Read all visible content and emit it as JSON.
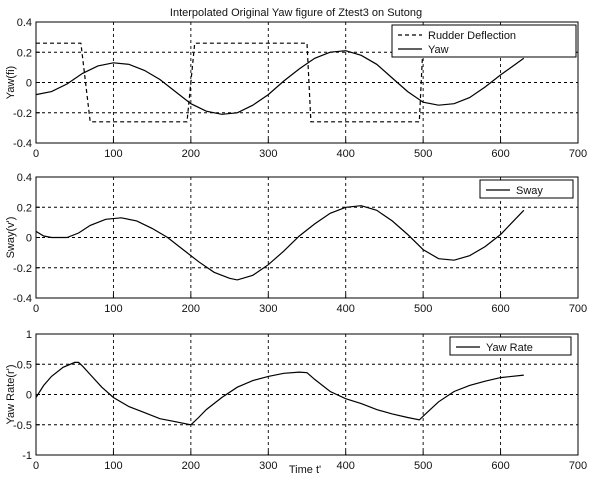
{
  "figure": {
    "title": "Interpolated Original Yaw figure of Ztest3 on Sutong",
    "xlabel": "Time t'"
  },
  "chart_data": [
    {
      "type": "line",
      "title": "Interpolated Original Yaw figure of Ztest3 on Sutong",
      "ylabel": "Yaw(fi)",
      "xlabel": "",
      "xlim": [
        0,
        700
      ],
      "ylim": [
        -0.4,
        0.4
      ],
      "xticks": [
        "0",
        "100",
        "200",
        "300",
        "400",
        "500",
        "600",
        "700"
      ],
      "yticks": [
        "-0.4",
        "-0.2",
        "0",
        "0.2",
        "0.4"
      ],
      "grid": true,
      "legend_position": "top-right",
      "series": [
        {
          "name": "Rudder Deflection",
          "style": "dashed",
          "x": [
            0,
            58,
            70,
            140,
            195,
            205,
            215,
            350,
            355,
            495,
            500,
            630
          ],
          "y": [
            0.26,
            0.26,
            -0.26,
            -0.26,
            -0.26,
            0.26,
            0.26,
            0.26,
            -0.26,
            -0.26,
            0.26,
            0.26
          ]
        },
        {
          "name": "Yaw",
          "style": "solid",
          "x": [
            0,
            20,
            40,
            60,
            80,
            100,
            120,
            140,
            160,
            180,
            200,
            220,
            240,
            260,
            280,
            300,
            320,
            340,
            360,
            380,
            400,
            420,
            440,
            460,
            480,
            500,
            520,
            540,
            560,
            580,
            600,
            630
          ],
          "y": [
            -0.08,
            -0.06,
            -0.01,
            0.06,
            0.11,
            0.13,
            0.12,
            0.08,
            0.02,
            -0.06,
            -0.14,
            -0.19,
            -0.21,
            -0.2,
            -0.15,
            -0.08,
            0.01,
            0.09,
            0.16,
            0.2,
            0.21,
            0.18,
            0.12,
            0.03,
            -0.06,
            -0.13,
            -0.15,
            -0.14,
            -0.1,
            -0.03,
            0.05,
            0.16
          ]
        }
      ]
    },
    {
      "type": "line",
      "title": "",
      "ylabel": "Sway(v')",
      "xlabel": "",
      "xlim": [
        0,
        700
      ],
      "ylim": [
        -0.4,
        0.4
      ],
      "xticks": [
        "0",
        "100",
        "200",
        "300",
        "400",
        "500",
        "600",
        "700"
      ],
      "yticks": [
        "-0.4",
        "-0.2",
        "0",
        "0.2",
        "0.4"
      ],
      "grid": true,
      "legend_position": "top-right",
      "series": [
        {
          "name": "Sway",
          "style": "solid",
          "x": [
            0,
            10,
            20,
            40,
            55,
            70,
            90,
            110,
            130,
            150,
            170,
            190,
            210,
            230,
            250,
            260,
            280,
            300,
            320,
            340,
            360,
            380,
            400,
            420,
            440,
            460,
            480,
            500,
            520,
            540,
            560,
            580,
            600,
            630
          ],
          "y": [
            0.04,
            0.01,
            0.0,
            0.0,
            0.03,
            0.08,
            0.12,
            0.13,
            0.11,
            0.06,
            0.0,
            -0.08,
            -0.16,
            -0.23,
            -0.27,
            -0.28,
            -0.25,
            -0.18,
            -0.09,
            0.01,
            0.09,
            0.16,
            0.2,
            0.21,
            0.18,
            0.11,
            0.02,
            -0.08,
            -0.14,
            -0.15,
            -0.12,
            -0.06,
            0.02,
            0.18
          ]
        }
      ]
    },
    {
      "type": "line",
      "title": "",
      "ylabel": "Yaw Rate(r')",
      "xlabel": "Time t'",
      "xlim": [
        0,
        700
      ],
      "ylim": [
        -1,
        1
      ],
      "xticks": [
        "0",
        "100",
        "200",
        "300",
        "400",
        "500",
        "600",
        "700"
      ],
      "yticks": [
        "-1",
        "-0.5",
        "0",
        "0.5",
        "1"
      ],
      "grid": true,
      "legend_position": "top-right",
      "series": [
        {
          "name": "Yaw Rate",
          "style": "solid",
          "x": [
            0,
            10,
            20,
            35,
            50,
            55,
            60,
            70,
            85,
            100,
            120,
            140,
            160,
            180,
            200,
            210,
            220,
            240,
            260,
            280,
            300,
            320,
            340,
            350,
            360,
            380,
            400,
            420,
            440,
            460,
            480,
            495,
            505,
            520,
            540,
            560,
            580,
            600,
            630
          ],
          "y": [
            -0.05,
            0.15,
            0.3,
            0.45,
            0.53,
            0.53,
            0.47,
            0.33,
            0.12,
            -0.05,
            -0.2,
            -0.3,
            -0.4,
            -0.45,
            -0.5,
            -0.38,
            -0.25,
            -0.05,
            0.12,
            0.23,
            0.3,
            0.35,
            0.37,
            0.36,
            0.25,
            0.05,
            -0.07,
            -0.15,
            -0.25,
            -0.32,
            -0.38,
            -0.42,
            -0.3,
            -0.12,
            0.05,
            0.15,
            0.22,
            0.28,
            0.32
          ]
        }
      ]
    }
  ]
}
